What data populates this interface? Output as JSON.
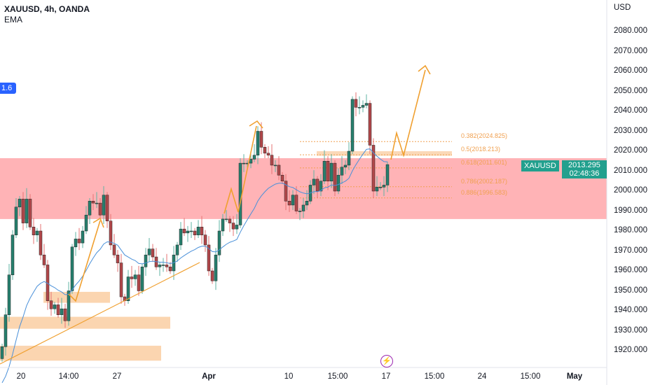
{
  "header": {
    "title": "XAUUSD, 4h, OANDA",
    "indicator": "EMA"
  },
  "left_tag": "1.6",
  "price_axis": {
    "currency": "USD",
    "labels": [
      "2080.000",
      "2070.000",
      "2060.000",
      "2050.000",
      "2040.000",
      "2030.000",
      "2020.000",
      "2010.000",
      "2000.000",
      "1990.000",
      "1980.000",
      "1970.000",
      "1960.000",
      "1950.000",
      "1940.000",
      "1930.000",
      "1920.000"
    ]
  },
  "time_axis": {
    "labels": [
      {
        "text": "20",
        "bold": false
      },
      {
        "text": "14:00",
        "bold": false
      },
      {
        "text": "27",
        "bold": false
      },
      {
        "text": "Apr",
        "bold": true
      },
      {
        "text": "10",
        "bold": false
      },
      {
        "text": "15:00",
        "bold": false
      },
      {
        "text": "17",
        "bold": false
      },
      {
        "text": "15:00",
        "bold": false
      },
      {
        "text": "24",
        "bold": false
      },
      {
        "text": "15:00",
        "bold": false
      },
      {
        "text": "May",
        "bold": true
      }
    ]
  },
  "last_price": {
    "symbol": "XAUUSD",
    "price": "2013.295",
    "countdown": "02:48:36"
  },
  "fib_levels": [
    {
      "label": "0.382(2024.825)",
      "price": 2024.825
    },
    {
      "label": "0.5(2018.213)",
      "price": 2018.213
    },
    {
      "label": "0.618(2011.601)",
      "price": 2011.601
    },
    {
      "label": "0.786(2002.187)",
      "price": 2002.187
    },
    {
      "label": "0.886(1996.583)",
      "price": 1996.583
    }
  ],
  "colors": {
    "up": "#26806e",
    "down": "#b2474a",
    "ema": "#4a90d9",
    "zone": "#ffb3b6",
    "demand": "#fbd5b0",
    "arrow": "#f0a030"
  },
  "chart_data": {
    "type": "candlestick",
    "title": "XAUUSD, 4h, OANDA",
    "ylim": [
      1912,
      2094
    ],
    "resistance_zone": [
      1986,
      2016.5
    ],
    "demand_zones": [
      [
        1944,
        1949.5
      ],
      [
        1931,
        1937
      ],
      [
        1915,
        1922.5
      ]
    ],
    "ema_period": 20,
    "closes": [
      1922,
      1938,
      1958,
      1978,
      1992,
      1996,
      1984,
      1996,
      1982,
      1978,
      1980,
      1968,
      1963,
      1945,
      1941,
      1943,
      1938,
      1941,
      1935,
      1950,
      1972,
      1976,
      1974,
      1980,
      1988,
      1995,
      1994,
      1994,
      1988,
      1998,
      1985,
      1973,
      1968,
      1964,
      1947,
      1945,
      1957,
      1956,
      1958,
      1950,
      1962,
      1968,
      1971,
      1967,
      1962,
      1963,
      1963,
      1962,
      1960,
      1968,
      1973,
      1981,
      1979,
      1980,
      1980,
      1978,
      1982,
      1978,
      1973,
      1960,
      1955,
      1968,
      1980,
      1986,
      1986,
      1984,
      1981,
      1983,
      2014,
      2014,
      2014,
      2016,
      2018,
      2030,
      2022,
      2019,
      2018,
      2013,
      2013,
      2008,
      2005,
      1995,
      1993,
      1998,
      1990,
      1990,
      1993,
      1995,
      2003,
      2006,
      2000,
      2005,
      2015,
      2005,
      2014,
      2000,
      2008,
      2012,
      2013,
      2020,
      2046,
      2042,
      2042,
      2043,
      2044,
      2023,
      2000,
      2002,
      2002,
      2003,
      2013.295
    ]
  }
}
